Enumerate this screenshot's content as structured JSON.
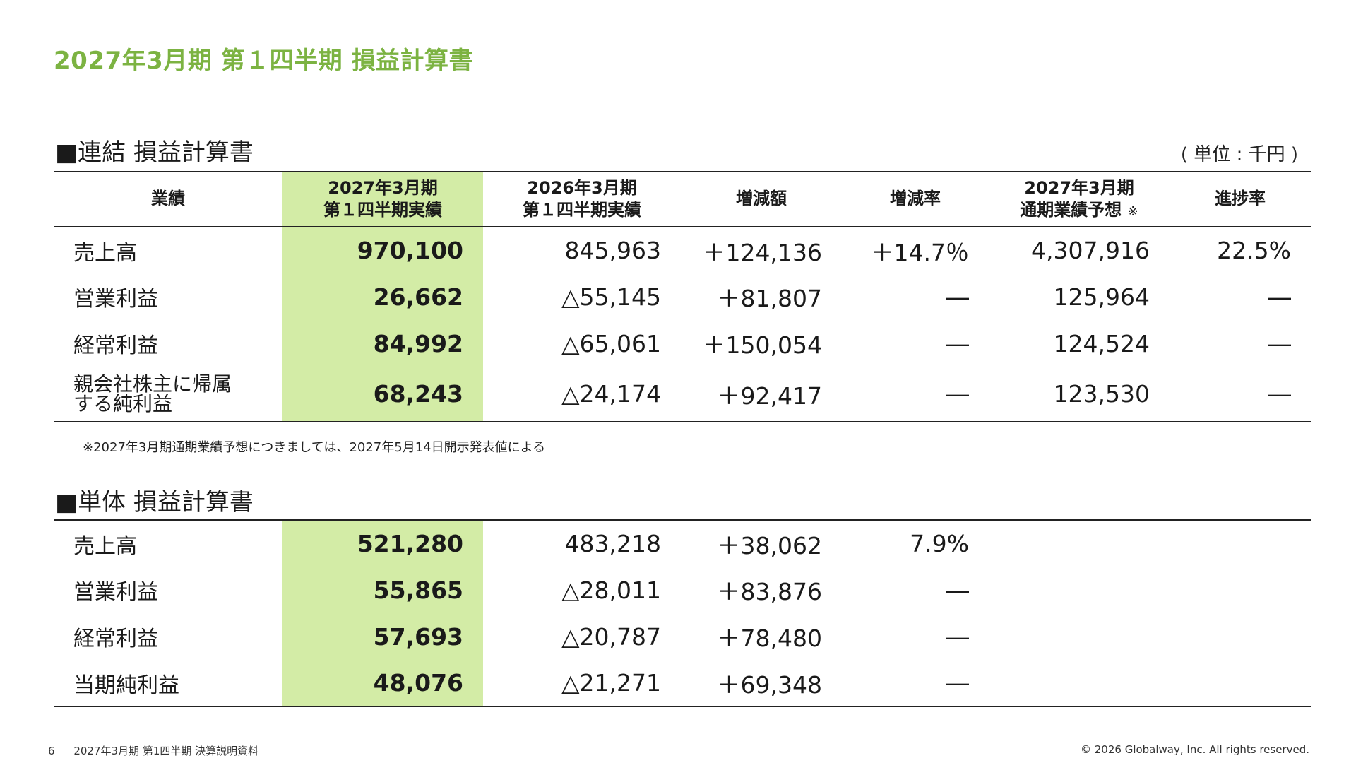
{
  "title": "2027年3月期 第１四半期 損益計算書",
  "consolidated": {
    "section_title": "■連結 損益計算書",
    "unit": "( 単位 : 千円 )",
    "headers": [
      "業績",
      "2027年3月期\n第１四半期実績",
      "2026年3月期\n第１四半期実績",
      "増減額",
      "増減率",
      "2027年3月期\n通期業績予想",
      "進捗率"
    ],
    "header_note_mark": "※",
    "rows": [
      {
        "label": "売上高",
        "cur": "970,100",
        "prev": "845,963",
        "diff": "＋124,136",
        "rate": "＋14.7％",
        "forecast": "4,307,916",
        "progress": "22.5%"
      },
      {
        "label": "営業利益",
        "cur": "26,662",
        "prev": "△55,145",
        "diff": "＋81,807",
        "rate": "―",
        "forecast": "125,964",
        "progress": "―"
      },
      {
        "label": "経常利益",
        "cur": "84,992",
        "prev": "△65,061",
        "diff": "＋150,054",
        "rate": "―",
        "forecast": "124,524",
        "progress": "―"
      },
      {
        "label": "親会社株主に帰属\nする純利益",
        "cur": "68,243",
        "prev": "△24,174",
        "diff": "＋92,417",
        "rate": "―",
        "forecast": "123,530",
        "progress": "―"
      }
    ],
    "note": "※2027年3月期通期業績予想につきましては、2027年5月14日開示発表値による"
  },
  "standalone": {
    "section_title": "■単体 損益計算書",
    "rows": [
      {
        "label": "売上高",
        "cur": "521,280",
        "prev": "483,218",
        "diff": "＋38,062",
        "rate": "7.9%"
      },
      {
        "label": "営業利益",
        "cur": "55,865",
        "prev": "△28,011",
        "diff": "＋83,876",
        "rate": "―"
      },
      {
        "label": "経常利益",
        "cur": "57,693",
        "prev": "△20,787",
        "diff": "＋78,480",
        "rate": "―"
      },
      {
        "label": "当期純利益",
        "cur": "48,076",
        "prev": "△21,271",
        "diff": "＋69,348",
        "rate": "―"
      }
    ]
  },
  "footer": {
    "page": "6",
    "doc_title": "2027年3月期 第1四半期 決算説明資料",
    "copyright": "© 2026 Globalway, Inc. All rights reserved."
  },
  "colors": {
    "title_green": "#7cb342",
    "highlight": "#d3eca6"
  }
}
